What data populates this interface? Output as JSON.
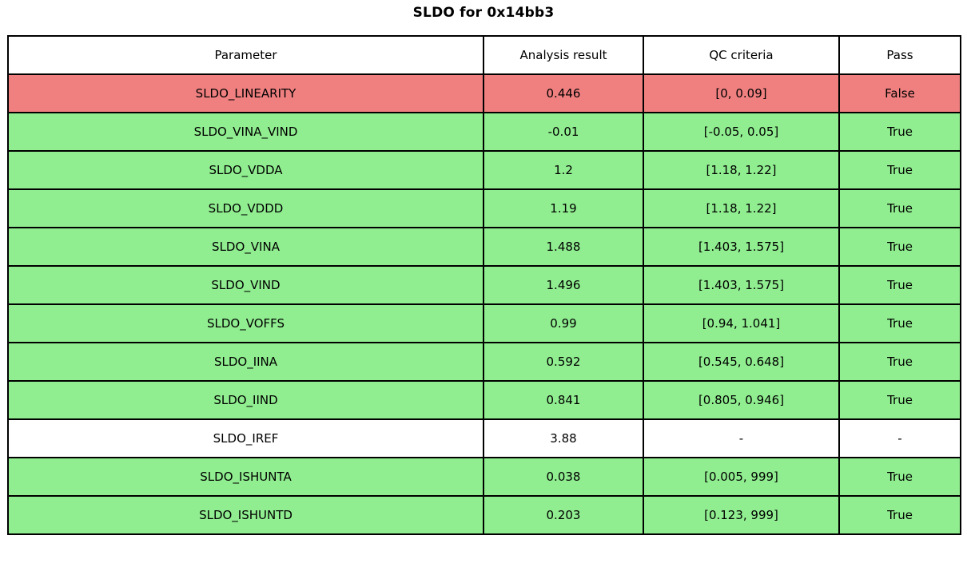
{
  "title": "SLDO for 0x14bb3",
  "colors": {
    "pass": "#90ee90",
    "fail": "#f08080",
    "none": "#ffffff",
    "border": "#000000",
    "text": "#000000"
  },
  "chart_data": {
    "type": "table",
    "title": "SLDO for 0x14bb3",
    "columns": [
      "Parameter",
      "Analysis result",
      "QC criteria",
      "Pass"
    ],
    "rows": [
      {
        "parameter": "SLDO_LINEARITY",
        "result": "0.446",
        "criteria": "[0, 0.09]",
        "pass": "False",
        "status": "fail"
      },
      {
        "parameter": "SLDO_VINA_VIND",
        "result": "-0.01",
        "criteria": "[-0.05, 0.05]",
        "pass": "True",
        "status": "pass"
      },
      {
        "parameter": "SLDO_VDDA",
        "result": "1.2",
        "criteria": "[1.18, 1.22]",
        "pass": "True",
        "status": "pass"
      },
      {
        "parameter": "SLDO_VDDD",
        "result": "1.19",
        "criteria": "[1.18, 1.22]",
        "pass": "True",
        "status": "pass"
      },
      {
        "parameter": "SLDO_VINA",
        "result": "1.488",
        "criteria": "[1.403, 1.575]",
        "pass": "True",
        "status": "pass"
      },
      {
        "parameter": "SLDO_VIND",
        "result": "1.496",
        "criteria": "[1.403, 1.575]",
        "pass": "True",
        "status": "pass"
      },
      {
        "parameter": "SLDO_VOFFS",
        "result": "0.99",
        "criteria": "[0.94, 1.041]",
        "pass": "True",
        "status": "pass"
      },
      {
        "parameter": "SLDO_IINA",
        "result": "0.592",
        "criteria": "[0.545, 0.648]",
        "pass": "True",
        "status": "pass"
      },
      {
        "parameter": "SLDO_IIND",
        "result": "0.841",
        "criteria": "[0.805, 0.946]",
        "pass": "True",
        "status": "pass"
      },
      {
        "parameter": "SLDO_IREF",
        "result": "3.88",
        "criteria": "-",
        "pass": "-",
        "status": "none"
      },
      {
        "parameter": "SLDO_ISHUNTA",
        "result": "0.038",
        "criteria": "[0.005, 999]",
        "pass": "True",
        "status": "pass"
      },
      {
        "parameter": "SLDO_ISHUNTD",
        "result": "0.203",
        "criteria": "[0.123, 999]",
        "pass": "True",
        "status": "pass"
      }
    ]
  }
}
